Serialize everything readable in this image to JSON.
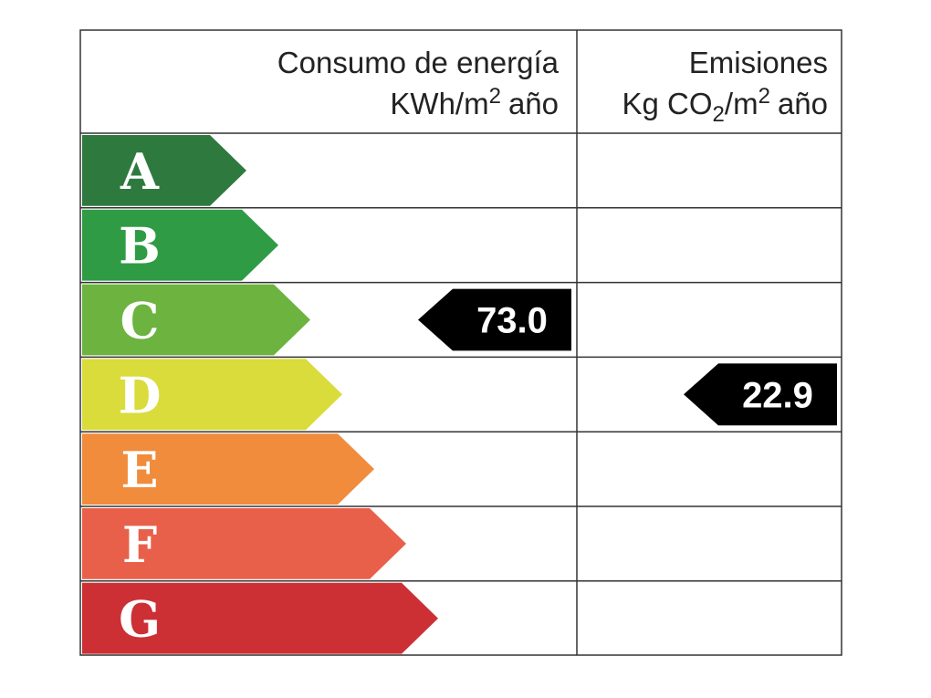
{
  "header": {
    "energy": {
      "title": "Consumo de energía",
      "unit": [
        "KWh/m",
        "2",
        "año"
      ]
    },
    "emissions": {
      "title": "Emisiones",
      "unit": [
        "Kg CO",
        "2",
        "/m",
        "2",
        "año"
      ]
    }
  },
  "classes": [
    {
      "label": "A",
      "color": "#2e7a3e"
    },
    {
      "label": "B",
      "color": "#2f9b45"
    },
    {
      "label": "C",
      "color": "#6db33f"
    },
    {
      "label": "D",
      "color": "#d9dc3a"
    },
    {
      "label": "E",
      "color": "#f08c3c"
    },
    {
      "label": "F",
      "color": "#e8604a"
    },
    {
      "label": "G",
      "color": "#cc3035"
    }
  ],
  "energy": {
    "value": "73.0",
    "class": "C"
  },
  "emissions": {
    "value": "22.9",
    "class": "D"
  }
}
